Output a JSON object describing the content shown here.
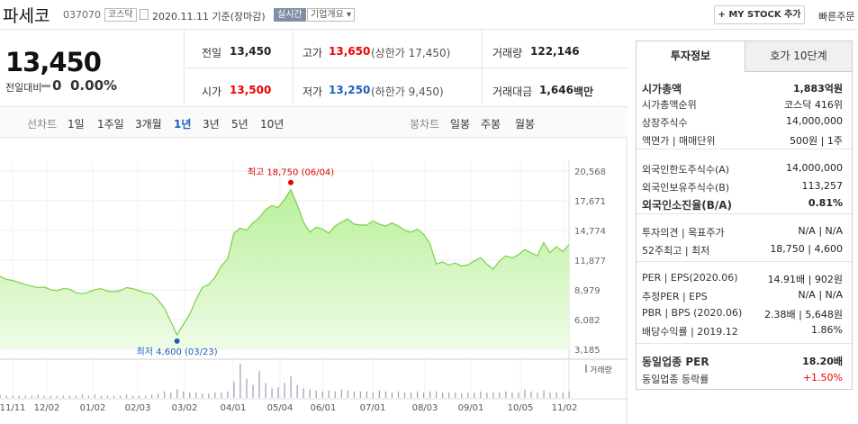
{
  "header": {
    "name": "파세코",
    "code": "037070",
    "market": "코스닥",
    "date": "2020.11.11 기준(장마감)",
    "realtime": "실시간",
    "info_select": "기업개요",
    "mystock": "+ MY STOCK 추가",
    "quick_order": "빠른주문"
  },
  "price": {
    "current": "13,450",
    "change_label": "전일대비",
    "change": "0",
    "change_pct": "0.00%"
  },
  "stats": {
    "prev_label": "전일",
    "prev": "13,450",
    "high_label": "고가",
    "high": "13,650",
    "upper_limit": "(상한가 17,450)",
    "volume_label": "거래량",
    "volume": "122,146",
    "open_label": "시가",
    "open": "13,500",
    "low_label": "저가",
    "low": "13,250",
    "lower_limit": "(하한가 9,450)",
    "amount_label": "거래대금",
    "amount": "1,646",
    "amount_unit": "백만"
  },
  "periods": {
    "line_label": "선차트",
    "items": [
      "1일",
      "1주일",
      "3개월",
      "1년",
      "3년",
      "5년",
      "10년"
    ],
    "active": "1년",
    "candle_label": "봉차트",
    "candles": [
      "일봉",
      "주봉",
      "월봉"
    ]
  },
  "chart_data": {
    "type": "area",
    "x_ticks": [
      "11/11",
      "12/02",
      "01/02",
      "02/03",
      "03/02",
      "04/01",
      "05/04",
      "06/01",
      "07/01",
      "08/03",
      "09/01",
      "10/05",
      "11/02"
    ],
    "y_ticks": [
      "20,568",
      "17,671",
      "14,774",
      "11,877",
      "8,979",
      "6,082",
      "3,185"
    ],
    "ylim": [
      3185,
      20568
    ],
    "max_label": "최고 18,750 (06/04)",
    "min_label": "최저 4,600 (03/23)",
    "volume_label": "거래량",
    "series": [
      {
        "values": [
          10300,
          10000,
          9900,
          9700,
          9500,
          9350,
          9200,
          9250,
          9000,
          8900,
          9100,
          9050,
          8700,
          8600,
          8750,
          9000,
          9100,
          8850,
          8800,
          8900,
          9200,
          9100,
          8900,
          8700,
          8600,
          8000,
          7200,
          5900,
          4600,
          5600,
          6600,
          8000,
          9200,
          9500,
          10200,
          11300,
          12000,
          14500,
          15000,
          14800,
          15500,
          16000,
          16800,
          17200,
          17000,
          17800,
          18750,
          17300,
          15600,
          14600,
          15100,
          14900,
          14500,
          15200,
          15600,
          15900,
          15400,
          15300,
          15300,
          15700,
          15400,
          15200,
          15500,
          15200,
          14800,
          14600,
          14900,
          14400,
          13500,
          11500,
          11700,
          11400,
          11600,
          11300,
          11400,
          11800,
          12100,
          11500,
          11000,
          11800,
          12300,
          12100,
          12400,
          12900,
          12600,
          12300,
          13600,
          12600,
          13200,
          12700,
          13400
        ]
      }
    ],
    "volume": [
      3,
      2,
      2,
      2,
      2,
      2,
      3,
      2,
      2,
      2,
      2,
      2,
      2,
      3,
      2,
      3,
      2,
      2,
      2,
      2,
      3,
      2,
      2,
      2,
      3,
      4,
      6,
      5,
      8,
      6,
      5,
      5,
      4,
      4,
      5,
      5,
      6,
      15,
      32,
      18,
      12,
      25,
      14,
      9,
      10,
      14,
      20,
      12,
      9,
      8,
      7,
      6,
      7,
      6,
      8,
      7,
      6,
      6,
      6,
      5,
      7,
      6,
      5,
      6,
      5,
      5,
      6,
      5,
      6,
      6,
      5,
      5,
      5,
      4,
      5,
      5,
      6,
      5,
      5,
      5,
      6,
      5,
      5,
      8,
      6,
      5,
      7,
      5,
      5,
      5,
      6
    ]
  },
  "panel": {
    "tab1": "투자정보",
    "tab2": "호가 10단계",
    "rows": [
      {
        "label": "시가총액",
        "value": "1,883억원"
      },
      {
        "label": "시가총액순위",
        "value": "코스닥 416위"
      },
      {
        "label": "상장주식수",
        "value": "14,000,000"
      },
      {
        "label": "액면가 | 매매단위",
        "value": "500원 | 1주"
      },
      {
        "label": "외국인한도주식수(A)",
        "value": "14,000,000"
      },
      {
        "label": "외국인보유주식수(B)",
        "value": "113,257"
      },
      {
        "label": "외국인소진율(B/A)",
        "value": "0.81%"
      },
      {
        "label": "투자의견 | 목표주가",
        "value": "N/A | N/A"
      },
      {
        "label": "52주최고 | 최저",
        "value": "18,750 | 4,600"
      },
      {
        "label": "PER | EPS(2020.06)",
        "value": "14.91배 | 902원"
      },
      {
        "label": "추정PER | EPS",
        "value": "N/A | N/A"
      },
      {
        "label": "PBR | BPS (2020.06)",
        "value": "2.38배 | 5,648원"
      },
      {
        "label": "배당수익률 | 2019.12",
        "value": "1.86%"
      },
      {
        "label": "동일업종 PER",
        "value": "18.20배"
      },
      {
        "label": "동일업종 등락률",
        "value": "+1.50%"
      }
    ]
  }
}
